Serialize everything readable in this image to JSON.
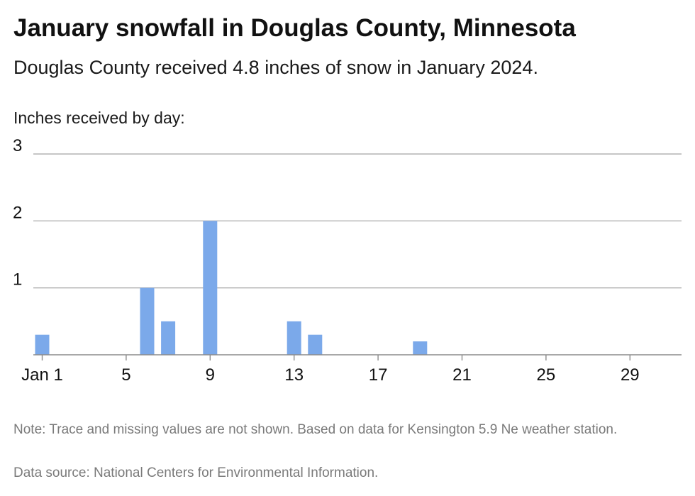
{
  "title": "January snowfall in Douglas County, Minnesota",
  "subtitle": "Douglas County received 4.8 inches of snow in January 2024.",
  "note": "Note: Trace and missing values are not shown. Based on data for Kensington 5.9 Ne weather station.",
  "source": "Data source: National Centers for Environmental Information.",
  "colors": {
    "bar": "#7ba9ea",
    "grid": "#b3b3b3",
    "baseline": "#8c8c8c",
    "text": "#111111",
    "footnote": "#7a7a7a"
  },
  "chart_data": {
    "type": "bar",
    "ylabel": "Inches received by day:",
    "xlabel": "",
    "ylim": [
      0,
      3
    ],
    "yticks": [
      "3",
      "2",
      "1"
    ],
    "ytick_values": [
      3,
      2,
      1
    ],
    "x_range": [
      1,
      31
    ],
    "xticks": [
      "Jan 1",
      "5",
      "9",
      "13",
      "17",
      "21",
      "25",
      "29"
    ],
    "xtick_values": [
      1,
      5,
      9,
      13,
      17,
      21,
      25,
      29
    ],
    "grid": true,
    "days": [
      1,
      6,
      7,
      9,
      13,
      14,
      19
    ],
    "values": [
      0.3,
      1.0,
      0.5,
      2.0,
      0.5,
      0.3,
      0.2
    ]
  }
}
